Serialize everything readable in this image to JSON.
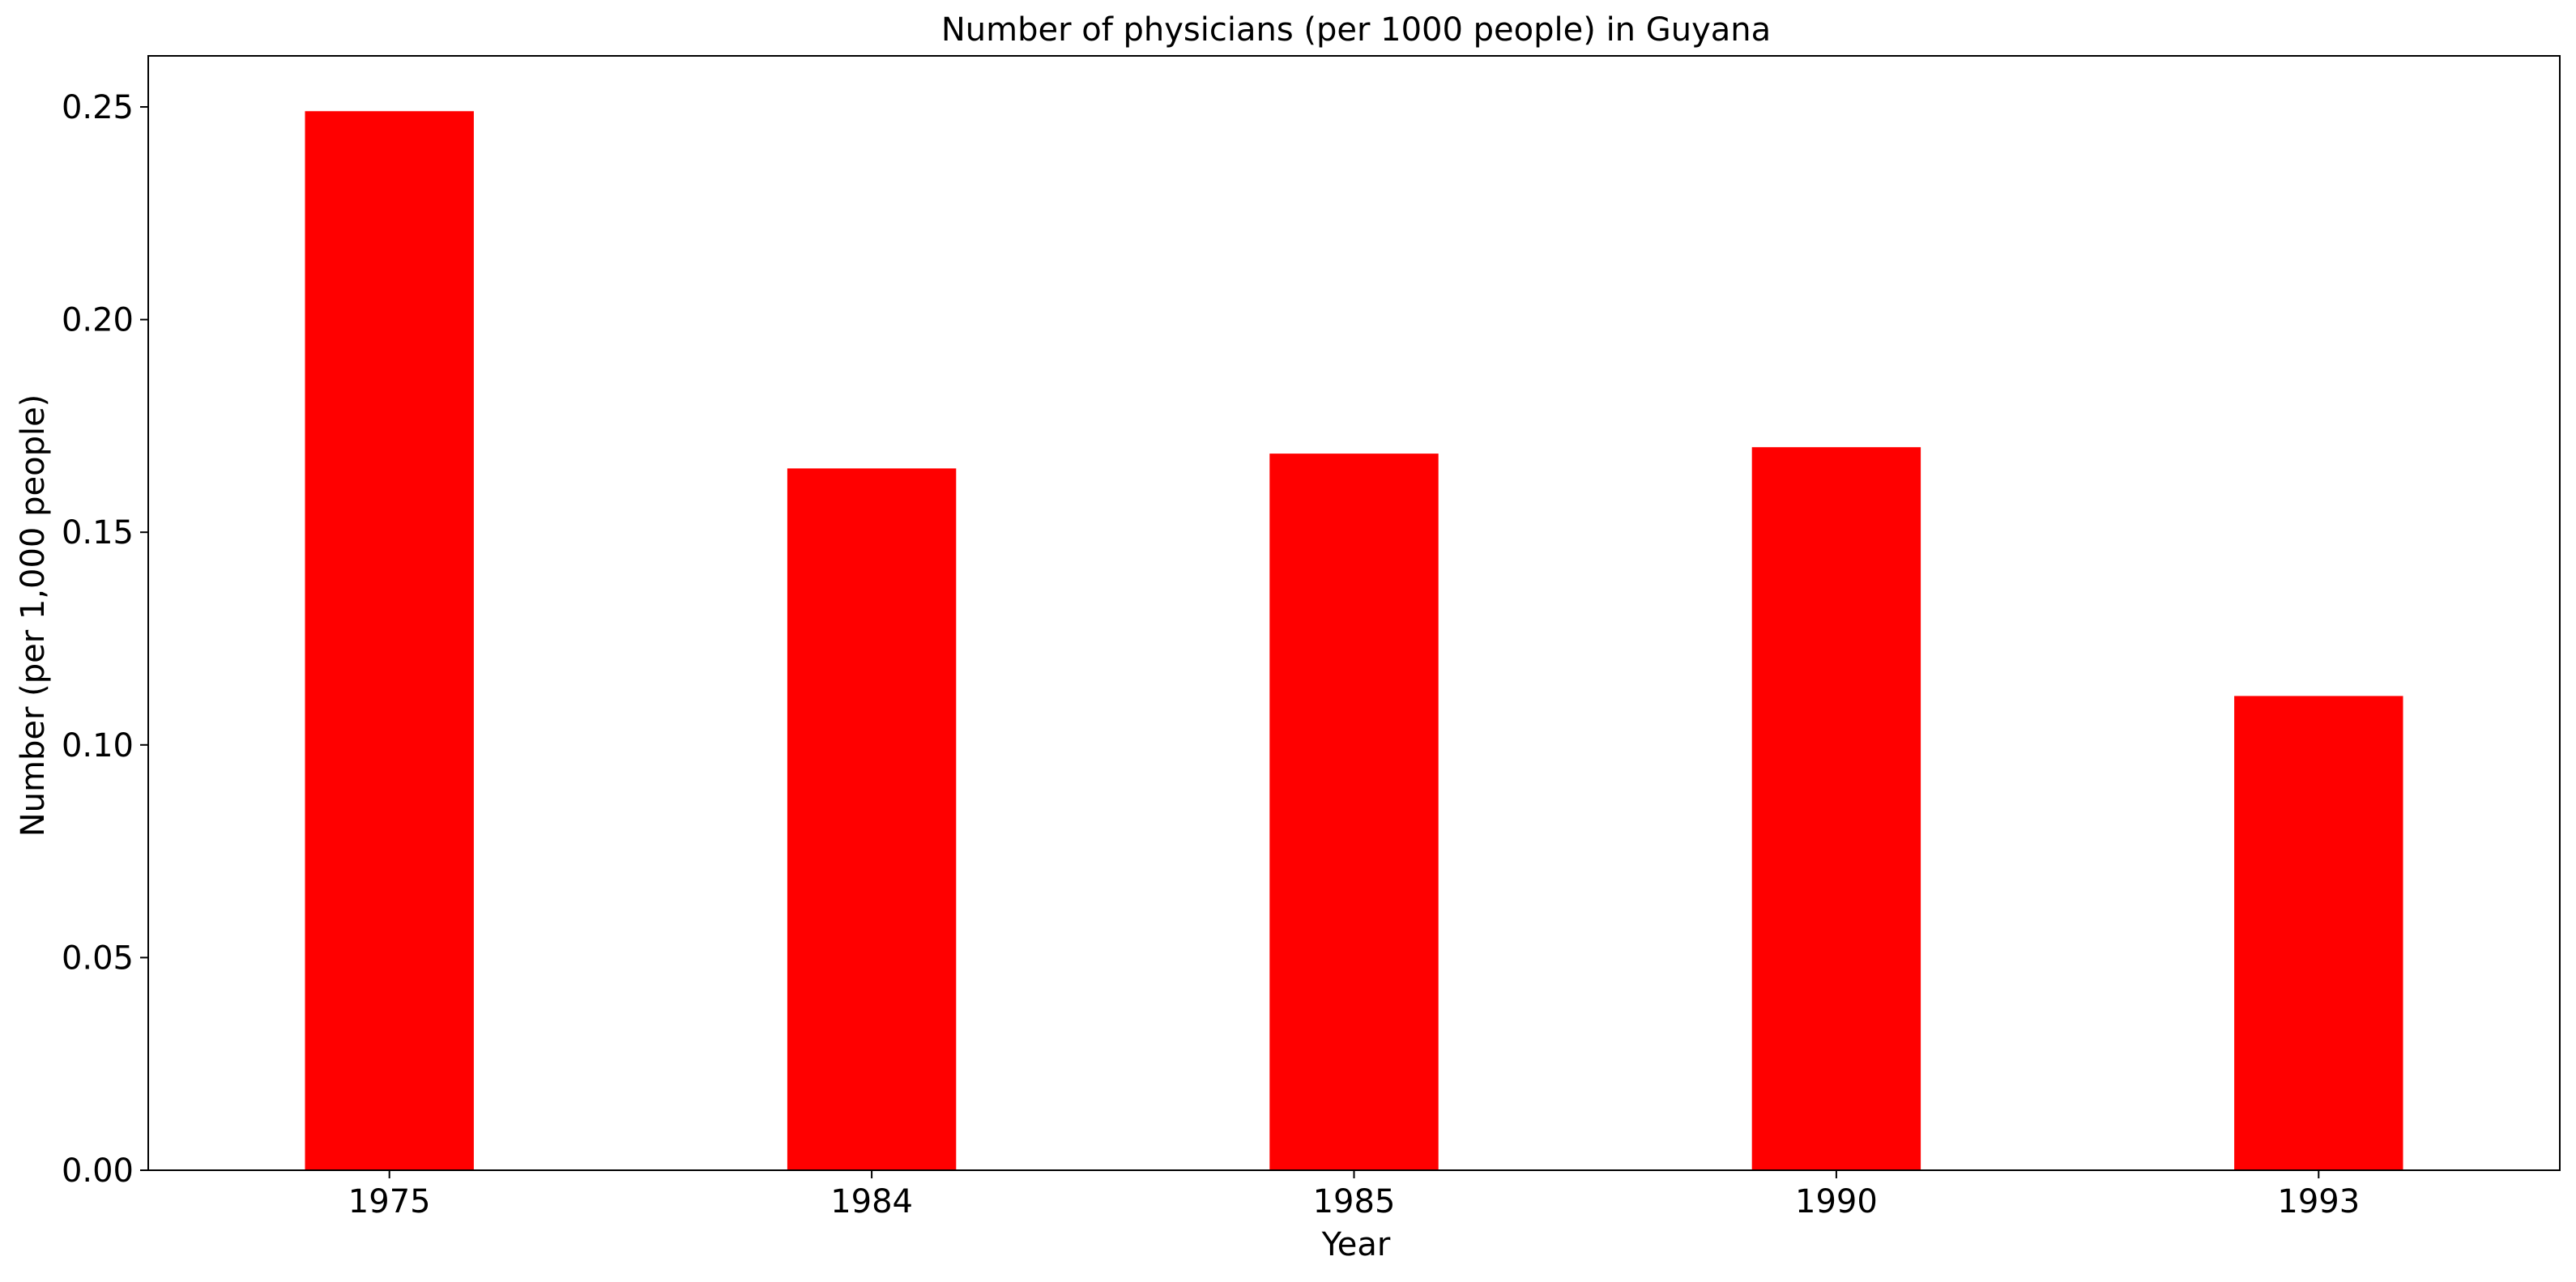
{
  "chart_data": {
    "type": "bar",
    "title": "Number of physicians (per 1000 people) in Guyana",
    "xlabel": "Year",
    "ylabel": "Number (per 1,000 people)",
    "categories": [
      "1975",
      "1984",
      "1985",
      "1990",
      "1993"
    ],
    "values": [
      0.249,
      0.165,
      0.1685,
      0.17,
      0.1115
    ],
    "ylim": [
      0,
      0.262
    ],
    "yticks": [
      "0.00",
      "0.05",
      "0.10",
      "0.15",
      "0.20",
      "0.25"
    ],
    "grid": false,
    "legend": "none",
    "bar_color": "#ff0000"
  }
}
